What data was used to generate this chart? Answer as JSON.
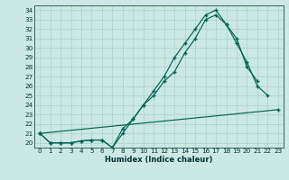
{
  "xlabel": "Humidex (Indice chaleur)",
  "bg_color": "#cce8e4",
  "grid_color": "#b0d4cc",
  "line_color": "#006655",
  "x": [
    0,
    1,
    2,
    3,
    4,
    5,
    6,
    7,
    8,
    9,
    10,
    11,
    12,
    13,
    14,
    15,
    16,
    17,
    18,
    19,
    20,
    21,
    22,
    23
  ],
  "y1": [
    21.0,
    20.0,
    20.0,
    20.0,
    20.2,
    20.3,
    20.3,
    19.5,
    21.0,
    22.5,
    24.0,
    25.5,
    27.0,
    29.0,
    30.5,
    32.0,
    33.5,
    34.0,
    32.5,
    31.0,
    28.0,
    26.5,
    null,
    null
  ],
  "y2": [
    21.0,
    20.0,
    20.0,
    20.0,
    20.2,
    20.3,
    20.3,
    19.5,
    21.5,
    22.5,
    24.0,
    25.0,
    26.5,
    27.5,
    29.5,
    31.0,
    33.0,
    33.5,
    32.5,
    30.5,
    28.5,
    26.0,
    25.0,
    null
  ],
  "y3": [
    21.0,
    null,
    null,
    null,
    null,
    null,
    null,
    null,
    null,
    null,
    null,
    null,
    null,
    null,
    null,
    null,
    null,
    null,
    null,
    null,
    null,
    null,
    null,
    23.5
  ],
  "ylim": [
    19.5,
    34.5
  ],
  "xlim": [
    -0.5,
    23.5
  ],
  "yticks": [
    20,
    21,
    22,
    23,
    24,
    25,
    26,
    27,
    28,
    29,
    30,
    31,
    32,
    33,
    34
  ],
  "xticks": [
    0,
    1,
    2,
    3,
    4,
    5,
    6,
    7,
    8,
    9,
    10,
    11,
    12,
    13,
    14,
    15,
    16,
    17,
    18,
    19,
    20,
    21,
    22,
    23
  ],
  "xlabel_fontsize": 6.0,
  "tick_fontsize": 5.2,
  "linewidth": 0.85,
  "markersize": 3.5
}
